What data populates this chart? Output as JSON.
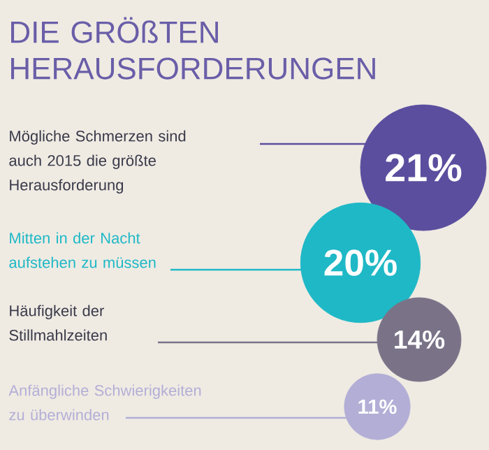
{
  "chart_data": {
    "type": "other",
    "title": "DIE GRÖßTEN HERAUSFORDERUNGEN",
    "categories": [
      "Mögliche Schmerzen sind auch 2015 die größte Herausforderung",
      "Mitten in der Nacht aufstehen zu müssen",
      "Häufigkeit der Stillmahlzeiten",
      "Anfängliche Schwierigkeiten zu überwinden"
    ],
    "values": [
      21,
      20,
      14,
      11
    ],
    "value_labels": [
      "21%",
      "20%",
      "14%",
      "11%"
    ],
    "colors": [
      "#5b4e9e",
      "#1fb8c6",
      "#7a7388",
      "#b3aed6"
    ]
  }
}
